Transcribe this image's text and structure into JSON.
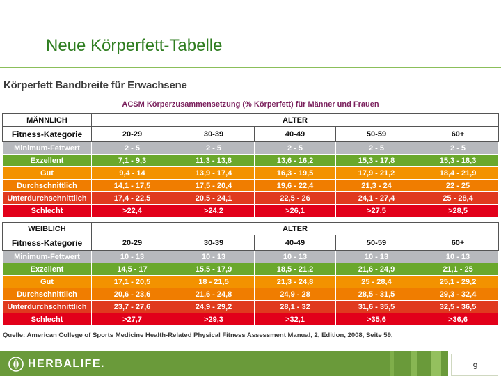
{
  "slide": {
    "title": "Neue Körperfett-Tabelle",
    "subheading": "Körperfett Bandbreite für Erwachsene",
    "acsm_caption": "ACSM Körperzusammensetzung (% Körperfett) für Männer und Frauen",
    "source": "Quelle: American College of Sports Medicine Health-Related Physical Fitness Assessment Manual, 2, Edition, 2008, Seite 59,",
    "page_number": "9",
    "logo_text": "HERBALIFE."
  },
  "colors": {
    "minimum": "#b7b9bd",
    "exzellent": "#6aa82c",
    "gut": "#f39200",
    "durchschnittlich": "#f07d00",
    "unterdurchschnittlich": "#e03a1e",
    "schlecht": "#e2001a",
    "brand_green": "#6a9a3a"
  },
  "men": {
    "gender_label": "MÄNNLICH",
    "age_label": "ALTER",
    "category_header": "Fitness-Kategorie",
    "ages": [
      "20-29",
      "30-39",
      "40-49",
      "50-59",
      "60+"
    ],
    "rows": [
      {
        "key": "minimum",
        "label": "Minimum-Fettwert",
        "values": [
          "2 - 5",
          "2 - 5",
          "2 - 5",
          "2 - 5",
          "2 - 5"
        ]
      },
      {
        "key": "exzellent",
        "label": "Exzellent",
        "values": [
          "7,1 - 9,3",
          "11,3 - 13,8",
          "13,6 - 16,2",
          "15,3 - 17,8",
          "15,3 - 18,3"
        ]
      },
      {
        "key": "gut",
        "label": "Gut",
        "values": [
          "9,4 - 14",
          "13,9 - 17,4",
          "16,3 - 19,5",
          "17,9 - 21,2",
          "18,4 - 21,9"
        ]
      },
      {
        "key": "durchschnittlich",
        "label": "Durchschnittlich",
        "values": [
          "14,1 - 17,5",
          "17,5 - 20,4",
          "19,6 - 22,4",
          "21,3 - 24",
          "22 - 25"
        ]
      },
      {
        "key": "unterdurchschnittlich",
        "label": "Unterdurchschnittlich",
        "values": [
          "17,4 - 22,5",
          "20,5 - 24,1",
          "22,5 - 26",
          "24,1 - 27,4",
          "25 - 28,4"
        ]
      },
      {
        "key": "schlecht",
        "label": "Schlecht",
        "values": [
          ">22,4",
          ">24,2",
          ">26,1",
          ">27,5",
          ">28,5"
        ]
      }
    ]
  },
  "women": {
    "gender_label": "WEIBLICH",
    "age_label": "ALTER",
    "category_header": "Fitness-Kategorie",
    "ages": [
      "20-29",
      "30-39",
      "40-49",
      "50-59",
      "60+"
    ],
    "rows": [
      {
        "key": "minimum",
        "label": "Minimum-Fettwert",
        "values": [
          "10 - 13",
          "10 - 13",
          "10 - 13",
          "10 - 13",
          "10 - 13"
        ]
      },
      {
        "key": "exzellent",
        "label": "Exzellent",
        "values": [
          "14,5 - 17",
          "15,5 - 17,9",
          "18,5 - 21,2",
          "21,6 - 24,9",
          "21,1 - 25"
        ]
      },
      {
        "key": "gut",
        "label": "Gut",
        "values": [
          "17,1 - 20,5",
          "18 - 21,5",
          "21,3 - 24,8",
          "25 - 28,4",
          "25,1 - 29,2"
        ]
      },
      {
        "key": "durchschnittlich",
        "label": "Durchschnittlich",
        "values": [
          "20,6 - 23,6",
          "21,6 - 24,8",
          "24,9 - 28",
          "28,5 - 31,5",
          "29,3 - 32,4"
        ]
      },
      {
        "key": "unterdurchschnittlich",
        "label": "Unterdurchschnittlich",
        "values": [
          "23,7 - 27,6",
          "24,9 - 29,2",
          "28,1 - 32",
          "31,6 - 35,5",
          "32,5 - 36,5"
        ]
      },
      {
        "key": "schlecht",
        "label": "Schlecht",
        "values": [
          ">27,7",
          ">29,3",
          ">32,1",
          ">35,6",
          ">36,6"
        ]
      }
    ]
  }
}
